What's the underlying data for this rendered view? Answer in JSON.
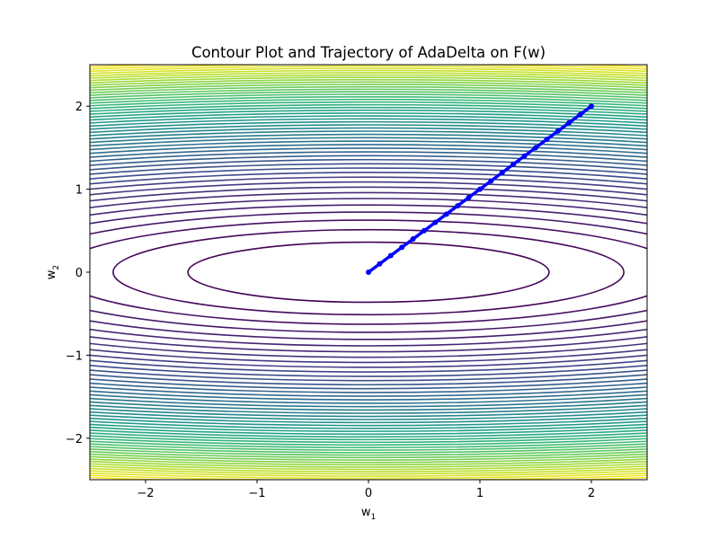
{
  "chart_data": {
    "type": "contour",
    "title": "Contour Plot and Trajectory of AdaDelta on F(w)",
    "xlabel": {
      "base": "w",
      "sub": "1"
    },
    "ylabel": {
      "base": "w",
      "sub": "2"
    },
    "xlim": [
      -2.5,
      2.5
    ],
    "ylim": [
      -2.5,
      2.5
    ],
    "xticks": [
      -2,
      -1,
      0,
      1,
      2
    ],
    "yticks": [
      -2,
      -1,
      0,
      1,
      2
    ],
    "xtick_labels": [
      "−2",
      "−1",
      "0",
      "1",
      "2"
    ],
    "ytick_labels": [
      "−2",
      "−1",
      "0",
      "1",
      "2"
    ],
    "function": "F(w) = 0.1*w1^2 + 2*w2^2",
    "contour_level_count": 50,
    "colormap": "viridis",
    "grid": false,
    "trajectory": {
      "color": "#0000ff",
      "start": [
        2,
        2
      ],
      "end": [
        0,
        0
      ],
      "marker": "point",
      "points": [
        [
          2.0,
          2.0
        ],
        [
          1.9,
          1.9
        ],
        [
          1.8,
          1.8
        ],
        [
          1.7,
          1.7
        ],
        [
          1.6,
          1.6
        ],
        [
          1.5,
          1.5
        ],
        [
          1.4,
          1.4
        ],
        [
          1.3,
          1.3
        ],
        [
          1.2,
          1.2
        ],
        [
          1.1,
          1.1
        ],
        [
          1.0,
          1.0
        ],
        [
          0.9,
          0.9
        ],
        [
          0.8,
          0.8
        ],
        [
          0.7,
          0.7
        ],
        [
          0.6,
          0.6
        ],
        [
          0.5,
          0.5
        ],
        [
          0.4,
          0.4
        ],
        [
          0.3,
          0.3
        ],
        [
          0.2,
          0.2
        ],
        [
          0.1,
          0.1
        ],
        [
          0.0,
          0.0
        ]
      ]
    }
  }
}
